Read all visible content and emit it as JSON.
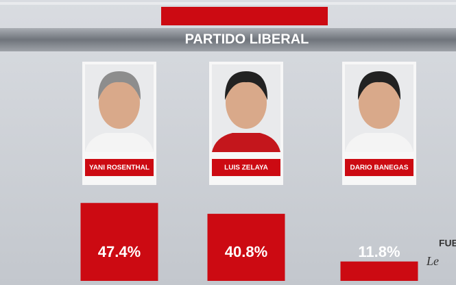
{
  "chart_data": {
    "type": "bar",
    "title": "PARTIDO LIBERAL",
    "categories": [
      "YANI ROSENTHAL",
      "LUIS ZELAYA",
      "DARIO BANEGAS"
    ],
    "values": [
      47.4,
      40.8,
      11.8
    ],
    "value_labels": [
      "47.4%",
      "40.8%",
      "11.8%"
    ],
    "color": "#cc0a12",
    "source_label": "FUE",
    "logo": "Le"
  }
}
